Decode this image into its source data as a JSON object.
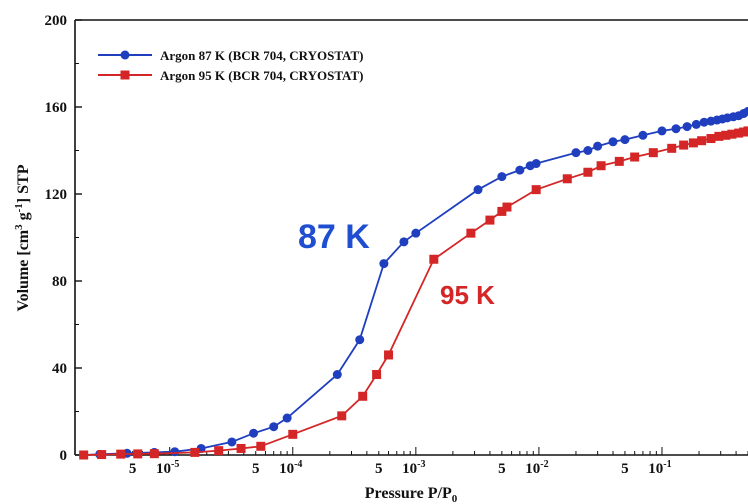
{
  "chart_data": {
    "type": "line",
    "title": "",
    "xlabel": "Pressure P/P",
    "xlabel_sub": "0",
    "ylabel": "Volume [cm3 g-1] STP",
    "ylabel_parts": {
      "a": "Volume [cm",
      "sup1": "3",
      "b": " g",
      "sup2": "-1",
      "c": "] STP"
    },
    "x_scale": "log",
    "xlim": [
      1.7e-06,
      0.5
    ],
    "ylim": [
      0,
      200
    ],
    "grid": false,
    "legend_position": "top-left",
    "y_ticks": [
      "0",
      "40",
      "80",
      "120",
      "160",
      "200"
    ],
    "x_ticks": [
      {
        "label": "5",
        "value": 5e-06
      },
      {
        "label": "10",
        "exp": "-5",
        "value": 1e-05
      },
      {
        "label": "5",
        "value": 5e-05
      },
      {
        "label": "10",
        "exp": "-4",
        "value": 0.0001
      },
      {
        "label": "5",
        "value": 0.0005
      },
      {
        "label": "10",
        "exp": "-3",
        "value": 0.001
      },
      {
        "label": "5",
        "value": 0.005
      },
      {
        "label": "10",
        "exp": "-2",
        "value": 0.01
      },
      {
        "label": "5",
        "value": 0.05
      },
      {
        "label": "10",
        "exp": "-1",
        "value": 0.1
      }
    ],
    "series": [
      {
        "name": "Argon 87 K (BCR 704, CRYOSTAT)",
        "color": "#1f3fbf",
        "marker": "circle",
        "annotation": "87 K",
        "x": [
          2e-06,
          2.7e-06,
          4.5e-06,
          7.5e-06,
          1.1e-05,
          1.8e-05,
          3.2e-05,
          4.8e-05,
          7e-05,
          9e-05,
          0.00023,
          0.00035,
          0.00055,
          0.0008,
          0.001,
          0.0032,
          0.005,
          0.007,
          0.0085,
          0.0095,
          0.02,
          0.025,
          0.03,
          0.04,
          0.05,
          0.07,
          0.1,
          0.13,
          0.16,
          0.19,
          0.22,
          0.25,
          0.28,
          0.31,
          0.34,
          0.38,
          0.42,
          0.46,
          0.5
        ],
        "y": [
          0,
          0.3,
          0.8,
          1.2,
          1.5,
          3,
          6,
          10,
          13,
          17,
          37,
          53,
          88,
          98,
          102,
          122,
          128,
          131,
          133,
          134,
          139,
          140,
          142,
          144,
          145,
          147,
          149,
          150,
          151,
          152,
          153,
          153.5,
          154,
          154.5,
          155,
          155.5,
          156,
          157,
          158
        ]
      },
      {
        "name": "Argon 95 K (BCR 704, CRYOSTAT)",
        "color": "#d42626",
        "marker": "square",
        "annotation": "95 K",
        "x": [
          2e-06,
          2.8e-06,
          4e-06,
          5.5e-06,
          7.5e-06,
          1.6e-05,
          2.5e-05,
          3.8e-05,
          5.5e-05,
          0.0001,
          0.00025,
          0.00037,
          0.00048,
          0.0006,
          0.0014,
          0.0028,
          0.004,
          0.005,
          0.0055,
          0.0095,
          0.017,
          0.025,
          0.032,
          0.045,
          0.06,
          0.085,
          0.12,
          0.15,
          0.18,
          0.21,
          0.25,
          0.29,
          0.33,
          0.37,
          0.42,
          0.46,
          0.5
        ],
        "y": [
          0,
          0.2,
          0.4,
          0.5,
          0.6,
          1.2,
          2,
          3,
          4,
          9.5,
          18,
          27,
          37,
          46,
          90,
          102,
          108,
          112,
          114,
          122,
          127,
          130,
          133,
          135,
          137,
          139,
          141,
          142.5,
          143.5,
          144.5,
          145.5,
          146.5,
          147,
          147.5,
          148,
          148.5,
          149
        ]
      }
    ]
  }
}
